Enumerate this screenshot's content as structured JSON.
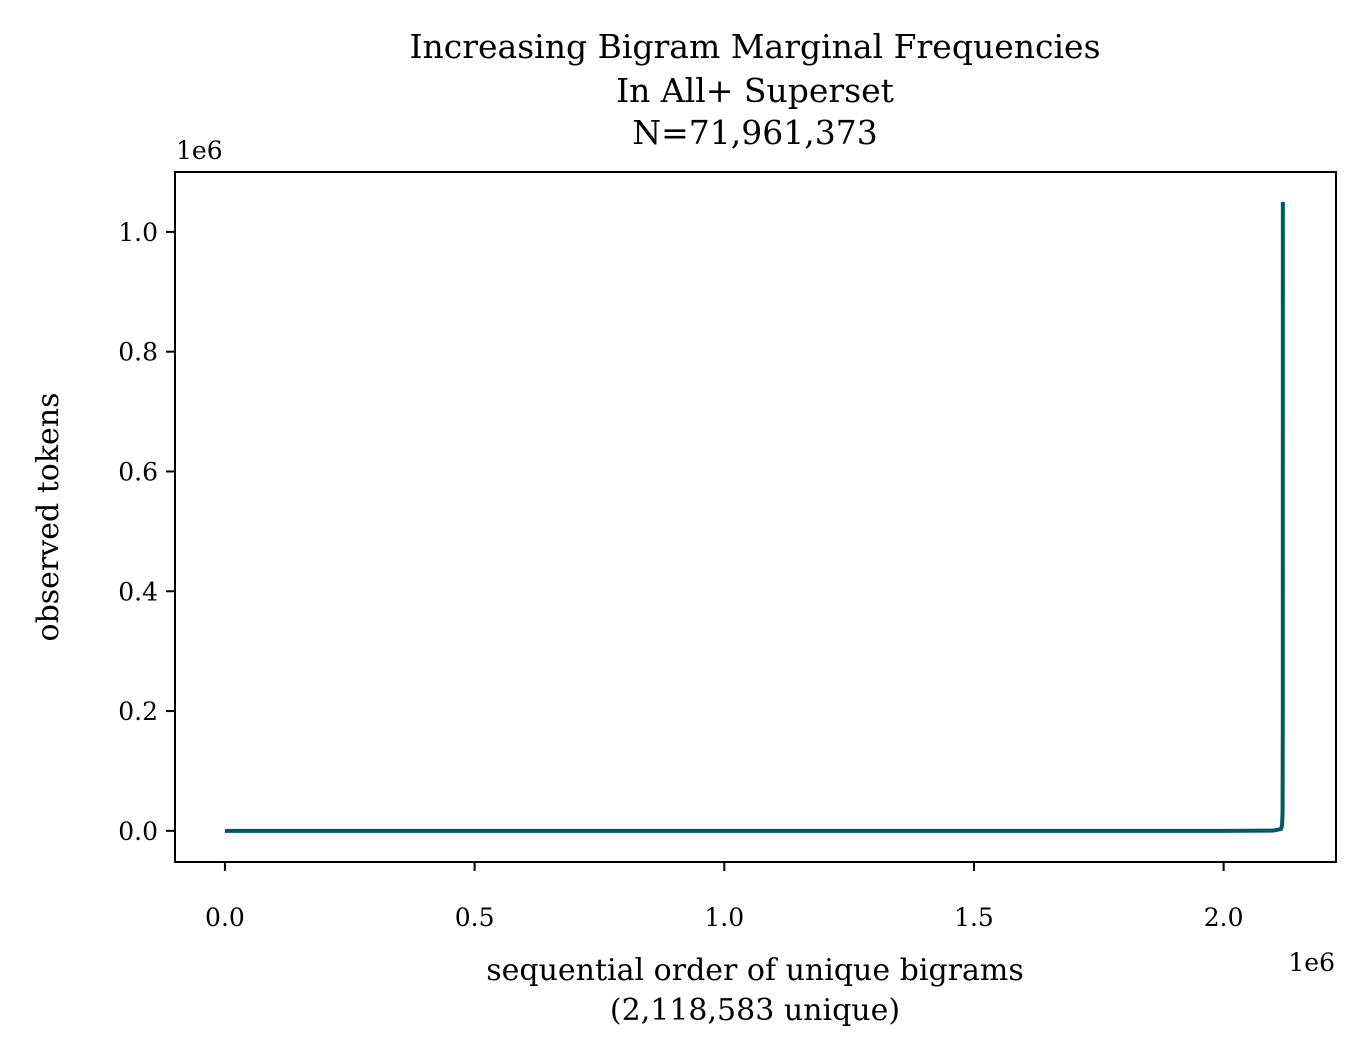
{
  "chart_data": {
    "type": "line",
    "title_lines": [
      "Increasing Bigram Marginal Frequencies",
      "In All+ Superset",
      "N=71,961,373"
    ],
    "xlabel_lines": [
      "sequential order of unique bigrams",
      "(2,118,583 unique)"
    ],
    "ylabel": "observed tokens",
    "x_offset_label": "1e6",
    "y_offset_label": "1e6",
    "xlim": [
      -0.1,
      2.225
    ],
    "ylim": [
      -0.052,
      1.1
    ],
    "x_ticks": [
      0.0,
      0.5,
      1.0,
      1.5,
      2.0
    ],
    "x_tick_labels": [
      "0.0",
      "0.5",
      "1.0",
      "1.5",
      "2.0"
    ],
    "y_ticks": [
      0.0,
      0.2,
      0.4,
      0.6,
      0.8,
      1.0
    ],
    "y_tick_labels": [
      "0.0",
      "0.2",
      "0.4",
      "0.6",
      "0.8",
      "1.0"
    ],
    "grid": false,
    "line_color": "#005a66",
    "series": [
      {
        "x": [
          0.0,
          1.5,
          2.0,
          2.1,
          2.115,
          2.117,
          2.118,
          2.1185,
          2.118583
        ],
        "y": [
          0.0,
          0.0,
          0.0,
          0.0005,
          0.003,
          0.01,
          0.03,
          0.2,
          1.05
        ]
      }
    ]
  }
}
